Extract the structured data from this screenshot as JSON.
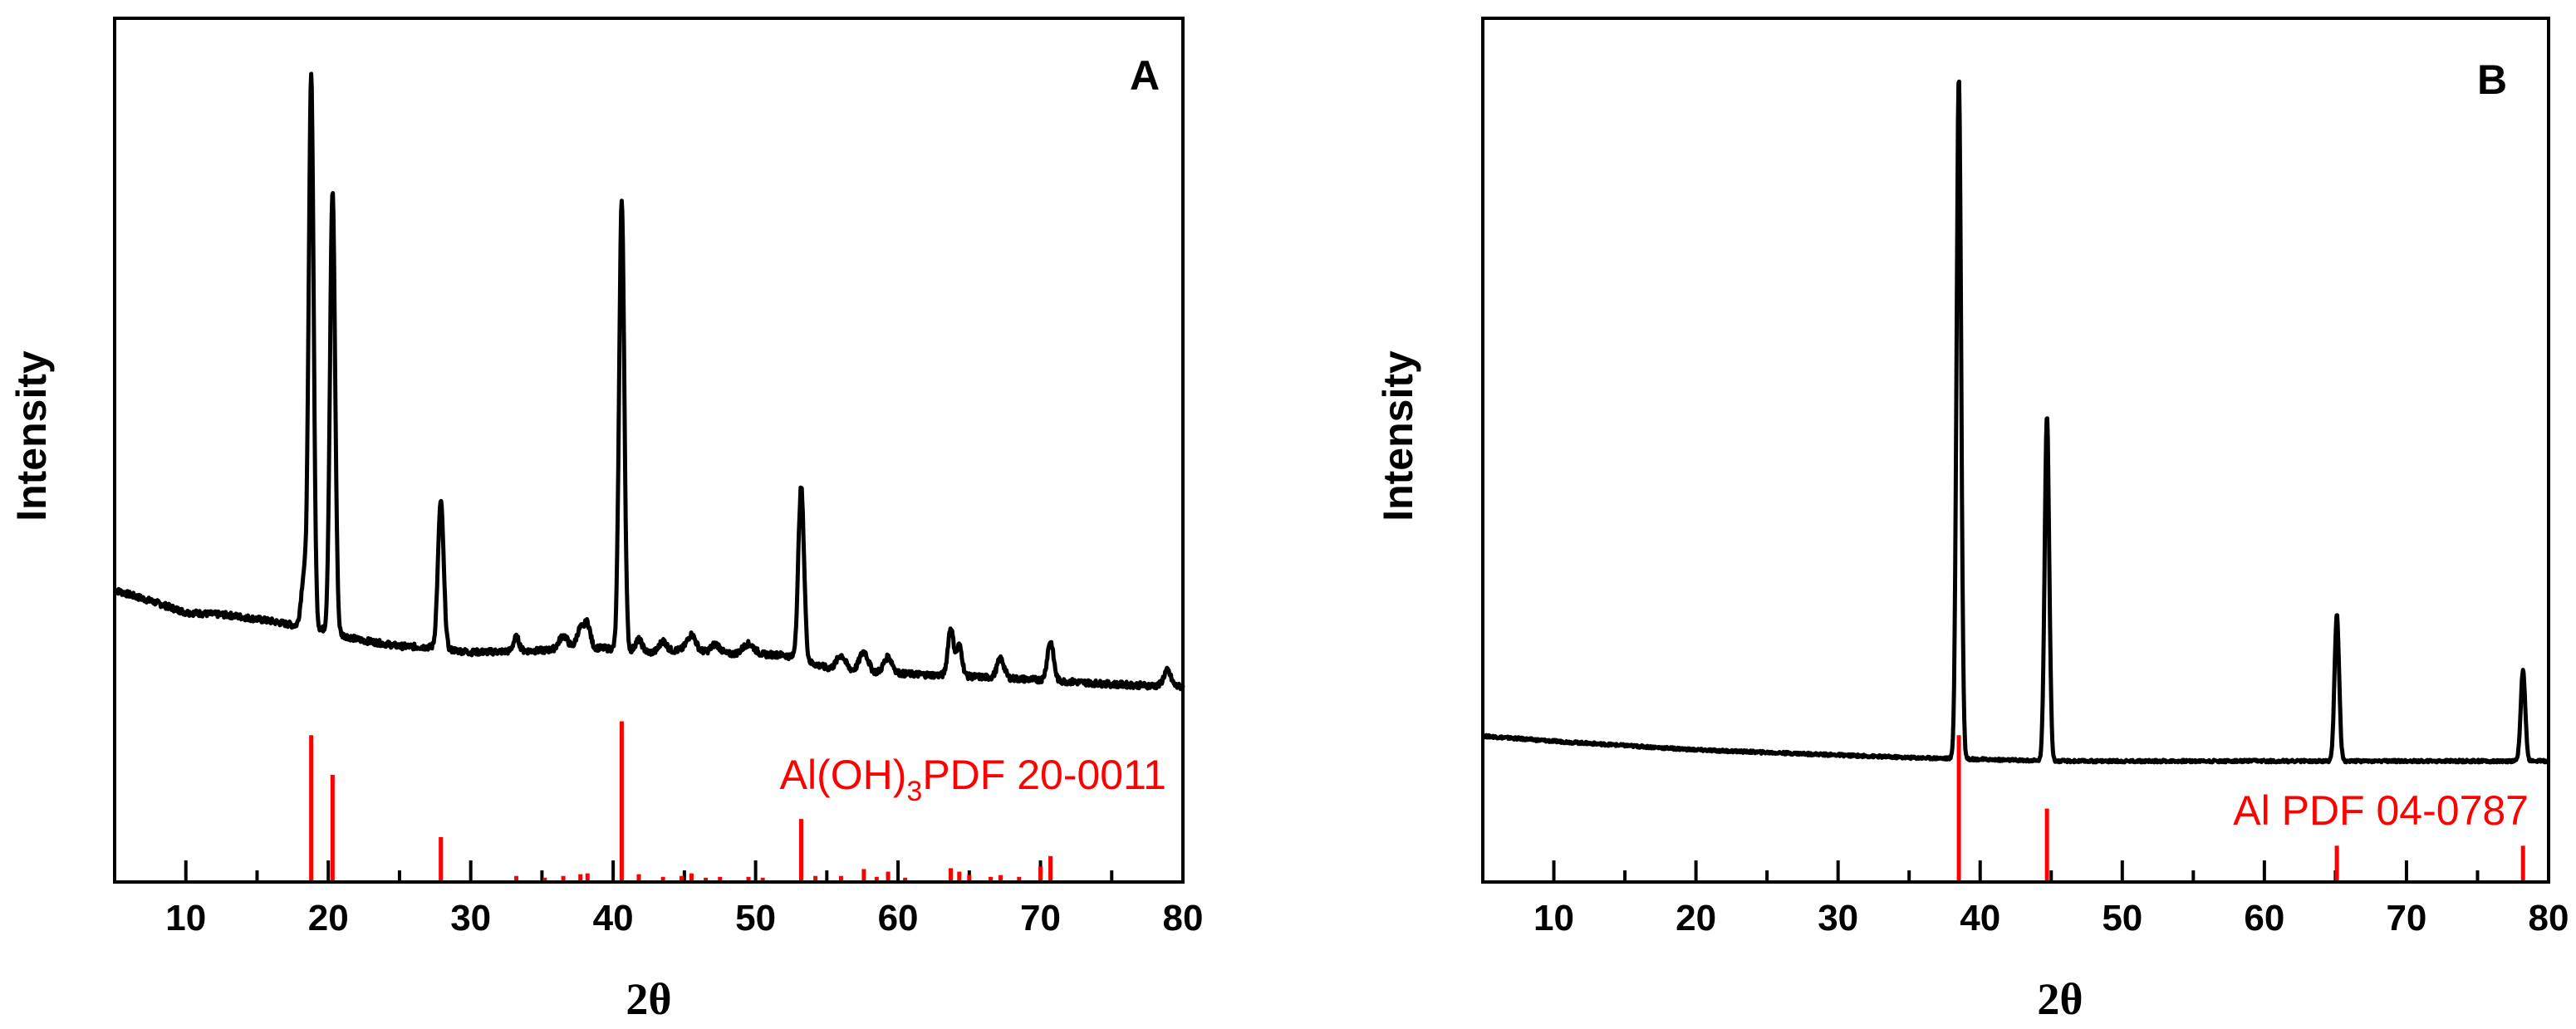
{
  "colors": {
    "pattern": "#000000",
    "reference": "#ff0000"
  },
  "chart_data": [
    {
      "type": "line",
      "panel": "A",
      "xlabel": "2θ",
      "ylabel": "Intensity",
      "xlim": [
        5,
        80
      ],
      "ylim": [
        0,
        100
      ],
      "xticks": [
        10,
        20,
        30,
        40,
        50,
        60,
        70,
        80
      ],
      "y_tick_labels": false,
      "grid": false,
      "reference_label": {
        "main": "Al(OH)",
        "sub": "3",
        "rest": "PDF 20-0011"
      },
      "baseline": [
        [
          5,
          33.8
        ],
        [
          8,
          32.3
        ],
        [
          10,
          31.2
        ],
        [
          13,
          30.9
        ],
        [
          16,
          30.2
        ],
        [
          18,
          29.6
        ],
        [
          19.5,
          29.3
        ],
        [
          22,
          28.1
        ],
        [
          25,
          27.3
        ],
        [
          27,
          27.2
        ],
        [
          30,
          26.6
        ],
        [
          35,
          26.8
        ],
        [
          38,
          27.2
        ],
        [
          40,
          27.0
        ],
        [
          42,
          26.5
        ],
        [
          45,
          26.9
        ],
        [
          48,
          26.4
        ],
        [
          52,
          26.3
        ],
        [
          55,
          24.8
        ],
        [
          58,
          24.3
        ],
        [
          62,
          24.0
        ],
        [
          65,
          23.8
        ],
        [
          70,
          23.4
        ],
        [
          75,
          22.9
        ],
        [
          80,
          22.6
        ]
      ],
      "peaks": [
        {
          "x": 18.3,
          "h": 6,
          "w": 0.2
        },
        {
          "x": 18.8,
          "h": 64,
          "w": 0.17
        },
        {
          "x": 20.3,
          "h": 51,
          "w": 0.18
        },
        {
          "x": 27.9,
          "h": 17,
          "w": 0.2
        },
        {
          "x": 33.2,
          "h": 1.6,
          "w": 0.2
        },
        {
          "x": 36.5,
          "h": 1.5,
          "w": 0.3
        },
        {
          "x": 37.7,
          "h": 2.2,
          "w": 0.25
        },
        {
          "x": 38.2,
          "h": 2.6,
          "w": 0.2
        },
        {
          "x": 40.6,
          "h": 52,
          "w": 0.18
        },
        {
          "x": 41.8,
          "h": 1.5,
          "w": 0.25
        },
        {
          "x": 43.5,
          "h": 1.2,
          "w": 0.25
        },
        {
          "x": 45.5,
          "h": 1.8,
          "w": 0.3
        },
        {
          "x": 47.2,
          "h": 1.0,
          "w": 0.3
        },
        {
          "x": 49.5,
          "h": 1.2,
          "w": 0.4
        },
        {
          "x": 53.2,
          "h": 20,
          "w": 0.2
        },
        {
          "x": 56.0,
          "h": 1.6,
          "w": 0.3
        },
        {
          "x": 57.6,
          "h": 2.3,
          "w": 0.3
        },
        {
          "x": 59.3,
          "h": 1.8,
          "w": 0.3
        },
        {
          "x": 63.7,
          "h": 5.5,
          "w": 0.2
        },
        {
          "x": 64.3,
          "h": 3.5,
          "w": 0.2
        },
        {
          "x": 67.2,
          "h": 2.2,
          "w": 0.25
        },
        {
          "x": 70.7,
          "h": 4.5,
          "w": 0.22
        },
        {
          "x": 78.9,
          "h": 1.8,
          "w": 0.25
        }
      ],
      "reference_peaks": [
        [
          18.8,
          17
        ],
        [
          20.3,
          12.4
        ],
        [
          27.9,
          5.2
        ],
        [
          33.2,
          0.7
        ],
        [
          35.2,
          0.5
        ],
        [
          36.5,
          0.7
        ],
        [
          37.7,
          0.9
        ],
        [
          38.2,
          1.0
        ],
        [
          40.6,
          18.6
        ],
        [
          41.8,
          0.9
        ],
        [
          43.5,
          0.6
        ],
        [
          44.8,
          0.7
        ],
        [
          45.5,
          1.0
        ],
        [
          46.5,
          0.5
        ],
        [
          47.5,
          0.6
        ],
        [
          49.5,
          0.6
        ],
        [
          50.5,
          0.5
        ],
        [
          53.2,
          7.3
        ],
        [
          54.2,
          0.7
        ],
        [
          56.0,
          0.7
        ],
        [
          57.6,
          1.5
        ],
        [
          58.5,
          0.6
        ],
        [
          59.3,
          1.2
        ],
        [
          60.5,
          0.5
        ],
        [
          63.7,
          1.6
        ],
        [
          64.3,
          1.2
        ],
        [
          65.0,
          0.8
        ],
        [
          66.5,
          0.6
        ],
        [
          67.2,
          0.8
        ],
        [
          68.5,
          0.6
        ],
        [
          70.0,
          1.8
        ],
        [
          70.7,
          3.0
        ]
      ]
    },
    {
      "type": "line",
      "panel": "B",
      "xlabel": "2θ",
      "ylabel": "Intensity",
      "xlim": [
        5,
        80
      ],
      "ylim": [
        0,
        100
      ],
      "xticks": [
        10,
        20,
        30,
        40,
        50,
        60,
        70,
        80
      ],
      "y_tick_labels": false,
      "grid": false,
      "reference_label": {
        "main": "Al PDF 04-0787",
        "sub": "",
        "rest": ""
      },
      "baseline": [
        [
          5,
          16.9
        ],
        [
          10,
          16.3
        ],
        [
          20,
          15.3
        ],
        [
          30,
          14.7
        ],
        [
          35,
          14.4
        ],
        [
          38,
          14.3
        ],
        [
          40,
          14.2
        ],
        [
          45,
          14.0
        ],
        [
          50,
          14.0
        ],
        [
          55,
          14.0
        ],
        [
          60,
          14.0
        ],
        [
          65,
          14.0
        ],
        [
          70,
          14.0
        ],
        [
          75,
          14.0
        ],
        [
          80,
          14.0
        ]
      ],
      "peaks": [
        {
          "x": 38.5,
          "h": 79,
          "w": 0.16
        },
        {
          "x": 44.7,
          "h": 40,
          "w": 0.16
        },
        {
          "x": 65.1,
          "h": 17,
          "w": 0.16
        },
        {
          "x": 78.2,
          "h": 10.5,
          "w": 0.16
        }
      ],
      "reference_peaks": [
        [
          38.5,
          17
        ],
        [
          44.7,
          8.5
        ],
        [
          65.1,
          4.2
        ],
        [
          78.2,
          4.2
        ]
      ]
    }
  ]
}
